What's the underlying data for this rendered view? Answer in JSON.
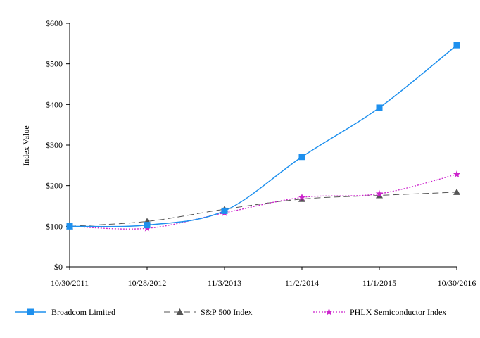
{
  "chart_data": {
    "type": "line",
    "title": "",
    "xlabel": "",
    "ylabel": "Index Value",
    "categories": [
      "10/30/2011",
      "10/28/2012",
      "11/3/2013",
      "11/2/2014",
      "11/1/2015",
      "10/30/2016"
    ],
    "ylim": [
      0,
      600
    ],
    "yticks": [
      0,
      100,
      200,
      300,
      400,
      500,
      600
    ],
    "ytick_labels": [
      "$0",
      "$100",
      "$200",
      "$300",
      "$400",
      "$500",
      "$600"
    ],
    "grid": false,
    "legend_position": "bottom",
    "series": [
      {
        "name": "Broadcom Limited",
        "values": [
          100,
          103,
          138,
          271,
          392,
          546
        ],
        "color": "#1e90ee",
        "marker": "square",
        "dash": "solid"
      },
      {
        "name": "S&P 500 Index",
        "values": [
          100,
          112,
          142,
          167,
          176,
          184
        ],
        "color": "#555555",
        "marker": "triangle",
        "dash": "dashed"
      },
      {
        "name": "PHLX Semiconductor Index",
        "values": [
          100,
          95,
          133,
          171,
          180,
          228
        ],
        "color": "#cc22cc",
        "marker": "star",
        "dash": "dotted"
      }
    ]
  }
}
